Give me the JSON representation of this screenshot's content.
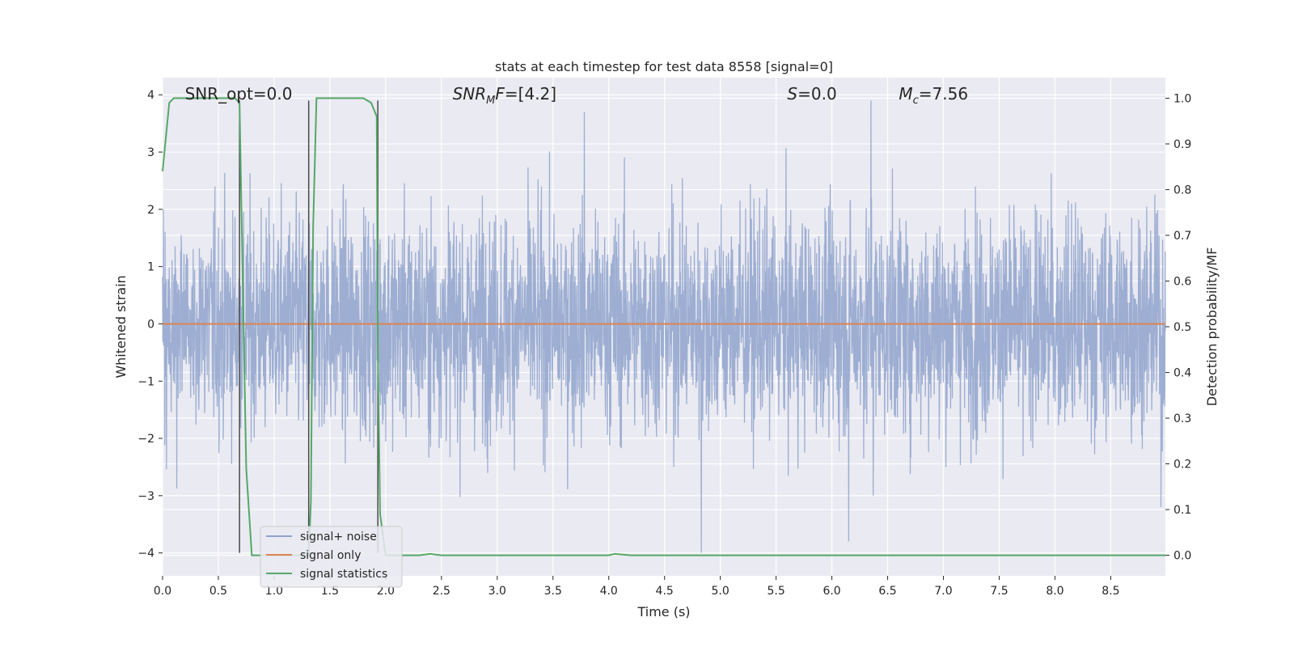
{
  "chart_data": {
    "type": "line",
    "title": "stats at each timestep for test data 8558 [signal=0]",
    "xlabel": "Time (s)",
    "ylabel_left": "Whitened strain",
    "ylabel_right": "Detection probability/MF",
    "xlim": [
      0.0,
      8.99
    ],
    "ylim_left": [
      -4.4,
      4.3
    ],
    "ylim_right": [
      -0.045,
      1.045
    ],
    "x_ticks": [
      "0.0",
      "0.5",
      "1.0",
      "1.5",
      "2.0",
      "2.5",
      "3.0",
      "3.5",
      "4.0",
      "4.5",
      "5.0",
      "5.5",
      "6.0",
      "6.5",
      "7.0",
      "7.5",
      "8.0",
      "8.5"
    ],
    "x_tick_values": [
      0.0,
      0.5,
      1.0,
      1.5,
      2.0,
      2.5,
      3.0,
      3.5,
      4.0,
      4.5,
      5.0,
      5.5,
      6.0,
      6.5,
      7.0,
      7.5,
      8.0,
      8.5
    ],
    "y_left_ticks": [
      "4",
      "3",
      "2",
      "1",
      "0",
      "−1",
      "−2",
      "−3",
      "−4"
    ],
    "y_left_tick_values": [
      4,
      3,
      2,
      1,
      0,
      -1,
      -2,
      -3,
      -4
    ],
    "y_right_ticks": [
      "1.0",
      "0.9",
      "0.8",
      "0.7",
      "0.6",
      "0.5",
      "0.4",
      "0.3",
      "0.2",
      "0.1",
      "0.0"
    ],
    "y_right_tick_values": [
      1.0,
      0.9,
      0.8,
      0.7,
      0.6,
      0.5,
      0.4,
      0.3,
      0.2,
      0.1,
      0.0
    ],
    "grid": true,
    "legend_position": "lower-left",
    "series": [
      {
        "name": "signal+ noise",
        "axis": "left",
        "color": "#8fa3cc",
        "envelope": {
          "noise_sigma": 1.0,
          "notable_peaks": [
            [
              3.78,
              3.7
            ],
            [
              6.35,
              3.9
            ],
            [
              4.83,
              -4.0
            ],
            [
              6.15,
              -3.8
            ],
            [
              6.37,
              -3.0
            ],
            [
              8.95,
              -3.2
            ]
          ]
        }
      },
      {
        "name": "signal only",
        "axis": "left",
        "color": "#dd8452",
        "x": [
          0.0,
          8.99
        ],
        "y": [
          0.0,
          0.0
        ]
      },
      {
        "name": "signal statistics",
        "axis": "right",
        "color": "#55a868",
        "x": [
          0.0,
          0.06,
          0.1,
          0.3,
          0.5,
          0.65,
          0.69,
          0.71,
          0.75,
          0.8,
          0.9,
          1.0,
          1.2,
          1.31,
          1.33,
          1.35,
          1.38,
          1.42,
          1.6,
          1.8,
          1.87,
          1.92,
          1.93,
          1.95,
          2.0,
          2.05,
          2.1,
          2.3,
          2.4,
          2.5,
          3.0,
          3.5,
          4.0,
          4.05,
          4.2,
          5.0,
          6.0,
          7.0,
          8.0,
          8.99
        ],
        "y": [
          0.84,
          0.99,
          1.0,
          1.0,
          1.0,
          1.0,
          0.99,
          0.72,
          0.19,
          0.0,
          0.0,
          0.0,
          0.0,
          0.0,
          0.12,
          0.72,
          1.0,
          1.0,
          1.0,
          1.0,
          0.99,
          0.96,
          0.45,
          0.09,
          0.0,
          0.0,
          0.0,
          0.0,
          0.003,
          0.0,
          0.0,
          0.0,
          0.0,
          0.003,
          0.0,
          0.0,
          0.0,
          0.0,
          0.0,
          0.0
        ]
      }
    ],
    "vertical_lines": [
      0.69,
      1.31,
      1.93
    ],
    "vline_range_left": [
      -4.0,
      3.9
    ],
    "vline_color": "#4a4a4a",
    "annotations": [
      {
        "id": "snr-opt",
        "text": "SNR_opt=0.0",
        "x": 0.2,
        "y": 4.0
      },
      {
        "id": "snr-mf",
        "text": "F=[4.2]",
        "x": 2.6,
        "y": 4.0,
        "math_sym": "SNR",
        "math_sub": "M"
      },
      {
        "id": "s-stat",
        "text": "=0.0",
        "x": 5.6,
        "y": 4.0,
        "math_sym": "S"
      },
      {
        "id": "chirp-mass",
        "text": "=7.56",
        "x": 6.6,
        "y": 4.0,
        "math_sym": "M",
        "math_sub": "c"
      }
    ],
    "colors": {
      "background": "#eaeaf2",
      "grid": "#ffffff",
      "noise": "#8fa3cc",
      "signal": "#dd8452",
      "stats": "#55a868"
    }
  }
}
